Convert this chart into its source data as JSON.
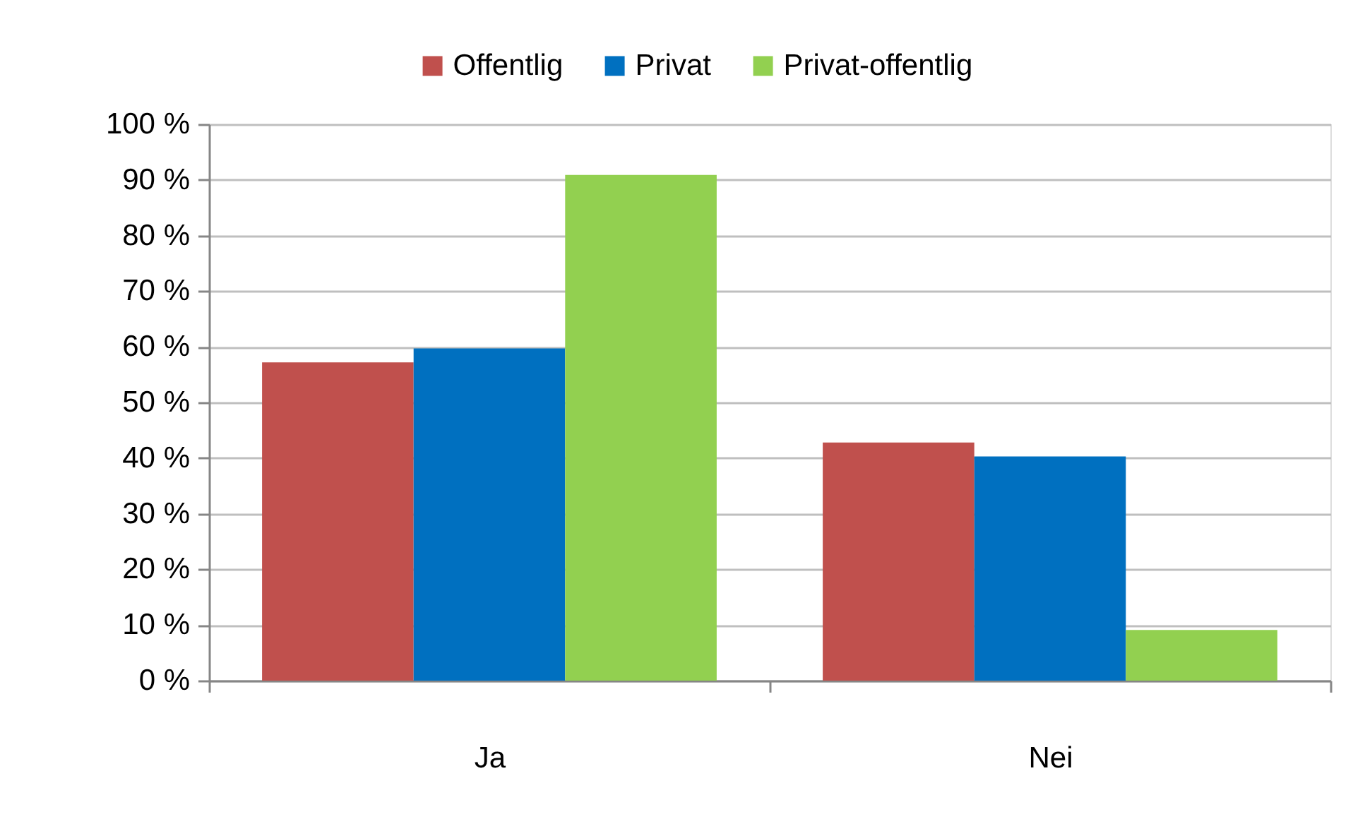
{
  "chart_data": {
    "type": "bar",
    "categories": [
      "Ja",
      "Nei"
    ],
    "series": [
      {
        "name": "Offentlig",
        "color": "#c0504d",
        "values": [
          57.2,
          42.8
        ]
      },
      {
        "name": "Privat",
        "color": "#0070c0",
        "values": [
          59.7,
          40.3
        ]
      },
      {
        "name": "Privat-offentlig",
        "color": "#92d050",
        "values": [
          90.9,
          9.1
        ]
      }
    ],
    "ylim": [
      0,
      100
    ],
    "yticks": [
      {
        "value": 0,
        "label": "0 %"
      },
      {
        "value": 10,
        "label": "10 %"
      },
      {
        "value": 20,
        "label": "20 %"
      },
      {
        "value": 30,
        "label": "30 %"
      },
      {
        "value": 40,
        "label": "40 %"
      },
      {
        "value": 50,
        "label": "50 %"
      },
      {
        "value": 60,
        "label": "60 %"
      },
      {
        "value": 70,
        "label": "70 %"
      },
      {
        "value": 80,
        "label": "80 %"
      },
      {
        "value": 90,
        "label": "90 %"
      },
      {
        "value": 100,
        "label": "100 %"
      }
    ],
    "grid": "y",
    "legend": "top"
  }
}
